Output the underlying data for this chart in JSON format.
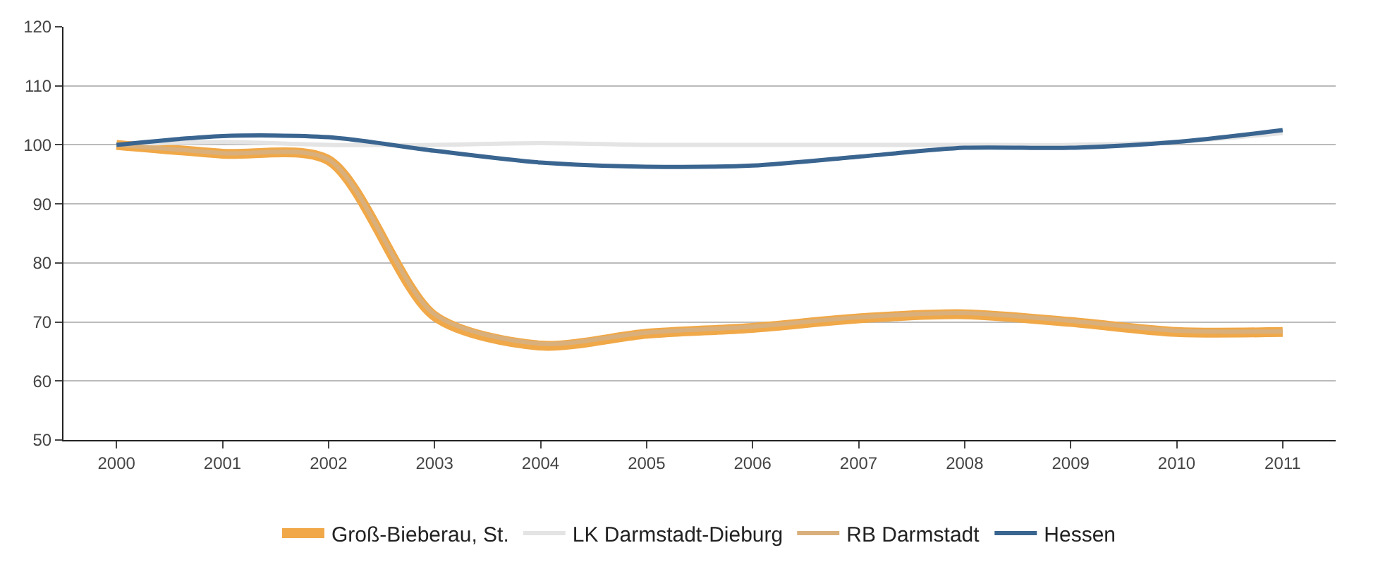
{
  "chart_data": {
    "type": "line",
    "categories": [
      "2000",
      "2001",
      "2002",
      "2003",
      "2004",
      "2005",
      "2006",
      "2007",
      "2008",
      "2009",
      "2010",
      "2011"
    ],
    "series": [
      {
        "name": "Groß-Bieberau, St.",
        "color": "#f0a848",
        "values": [
          100,
          98.5,
          97.4,
          71,
          66,
          68,
          69,
          70.6,
          71.3,
          70,
          68.3,
          68.3
        ]
      },
      {
        "name": "LK Darmstadt-Dieburg",
        "color": "#e4e4e4",
        "values": [
          100,
          100.5,
          100,
          100,
          100.3,
          100,
          100,
          100,
          100,
          100,
          100.5,
          102
        ]
      },
      {
        "name": "RB Darmstadt",
        "color": "#d9b07c",
        "values": [
          100,
          98.6,
          97.5,
          71.3,
          66.3,
          68.2,
          69.2,
          70.8,
          71.5,
          70.2,
          68.5,
          68.4
        ]
      },
      {
        "name": "Hessen",
        "color": "#3a6590",
        "values": [
          100,
          101.5,
          101.3,
          99,
          97,
          96.3,
          96.5,
          98,
          99.5,
          99.5,
          100.5,
          102.5
        ]
      }
    ],
    "ylim": [
      50,
      120
    ],
    "yticks": [
      50,
      60,
      70,
      80,
      90,
      100,
      110,
      120
    ],
    "grid": "y",
    "legend": "bottom",
    "marker": "none",
    "line_style": "solid"
  }
}
